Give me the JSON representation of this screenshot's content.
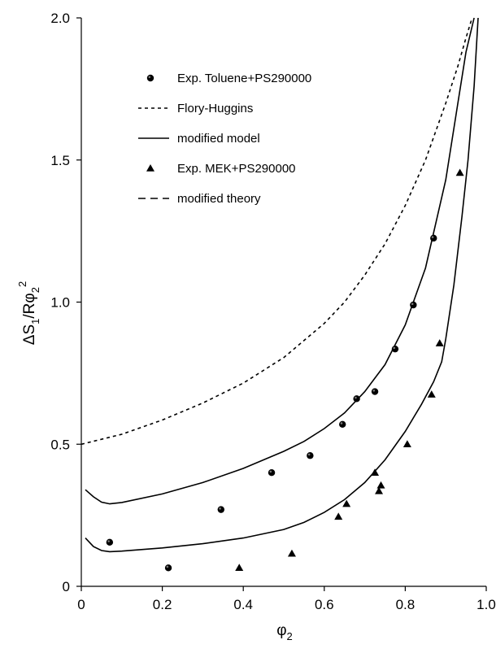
{
  "chart_data": {
    "type": "scatter",
    "title": "",
    "xlabel": "φ",
    "xlabel_sub": "2",
    "ylabel_parts": {
      "main": "ΔS",
      "sub1": "1",
      "mid": "/Rφ",
      "sub2": "2",
      "sup": "2"
    },
    "xlim": [
      0,
      1.0
    ],
    "ylim": [
      0,
      2.0
    ],
    "x_ticks": [
      "0",
      "0.2",
      "0.4",
      "0.6",
      "0.8",
      "1.0"
    ],
    "y_ticks": [
      "0",
      "0.5",
      "1.0",
      "1.5",
      "2.0"
    ],
    "grid": false,
    "legend_position": "top-left",
    "series": [
      {
        "name": "Exp. Toluene+PS290000",
        "kind": "markers",
        "marker": "circle",
        "x": [
          0.07,
          0.215,
          0.345,
          0.47,
          0.565,
          0.645,
          0.68,
          0.725,
          0.775,
          0.82,
          0.87
        ],
        "y": [
          0.155,
          0.065,
          0.27,
          0.4,
          0.46,
          0.57,
          0.66,
          0.685,
          0.835,
          0.99,
          1.225
        ]
      },
      {
        "name": "Flory-Huggins",
        "kind": "line",
        "dash": "short",
        "x": [
          0.0,
          0.1,
          0.2,
          0.3,
          0.4,
          0.5,
          0.6,
          0.65,
          0.7,
          0.75,
          0.8,
          0.85,
          0.9,
          0.93,
          0.95,
          0.965
        ],
        "y": [
          0.5,
          0.535,
          0.585,
          0.645,
          0.715,
          0.805,
          0.925,
          1.0,
          1.095,
          1.205,
          1.34,
          1.5,
          1.7,
          1.83,
          1.93,
          2.0
        ]
      },
      {
        "name": "modified model",
        "kind": "line",
        "dash": "solid",
        "curves": [
          {
            "x": [
              0.01,
              0.03,
              0.05,
              0.07,
              0.1,
              0.2,
              0.3,
              0.4,
              0.5,
              0.55,
              0.6,
              0.65,
              0.7,
              0.75,
              0.8,
              0.85,
              0.9,
              0.93,
              0.95,
              0.97
            ],
            "y": [
              0.34,
              0.315,
              0.296,
              0.29,
              0.295,
              0.325,
              0.365,
              0.415,
              0.475,
              0.51,
              0.555,
              0.61,
              0.685,
              0.78,
              0.92,
              1.12,
              1.43,
              1.7,
              1.88,
              2.0
            ]
          },
          {
            "x": [
              0.01,
              0.03,
              0.05,
              0.07,
              0.1,
              0.2,
              0.3,
              0.4,
              0.5,
              0.55,
              0.6,
              0.65,
              0.7,
              0.75,
              0.8,
              0.84,
              0.87,
              0.89,
              0.9,
              0.92,
              0.94,
              0.955,
              0.97,
              0.98
            ],
            "y": [
              0.17,
              0.14,
              0.126,
              0.122,
              0.124,
              0.135,
              0.15,
              0.17,
              0.2,
              0.225,
              0.26,
              0.305,
              0.365,
              0.445,
              0.545,
              0.64,
              0.72,
              0.79,
              0.87,
              1.06,
              1.3,
              1.5,
              1.76,
              2.0
            ]
          }
        ]
      },
      {
        "name": "Exp. MEK+PS290000",
        "kind": "markers",
        "marker": "triangle",
        "x": [
          0.39,
          0.52,
          0.635,
          0.655,
          0.725,
          0.735,
          0.74,
          0.805,
          0.865,
          0.885,
          0.935
        ],
        "y": [
          0.065,
          0.115,
          0.245,
          0.29,
          0.4,
          0.335,
          0.355,
          0.5,
          0.675,
          0.855,
          1.455
        ]
      },
      {
        "name": "modified theory",
        "kind": "line",
        "dash": "long",
        "x": [],
        "y": []
      }
    ]
  }
}
